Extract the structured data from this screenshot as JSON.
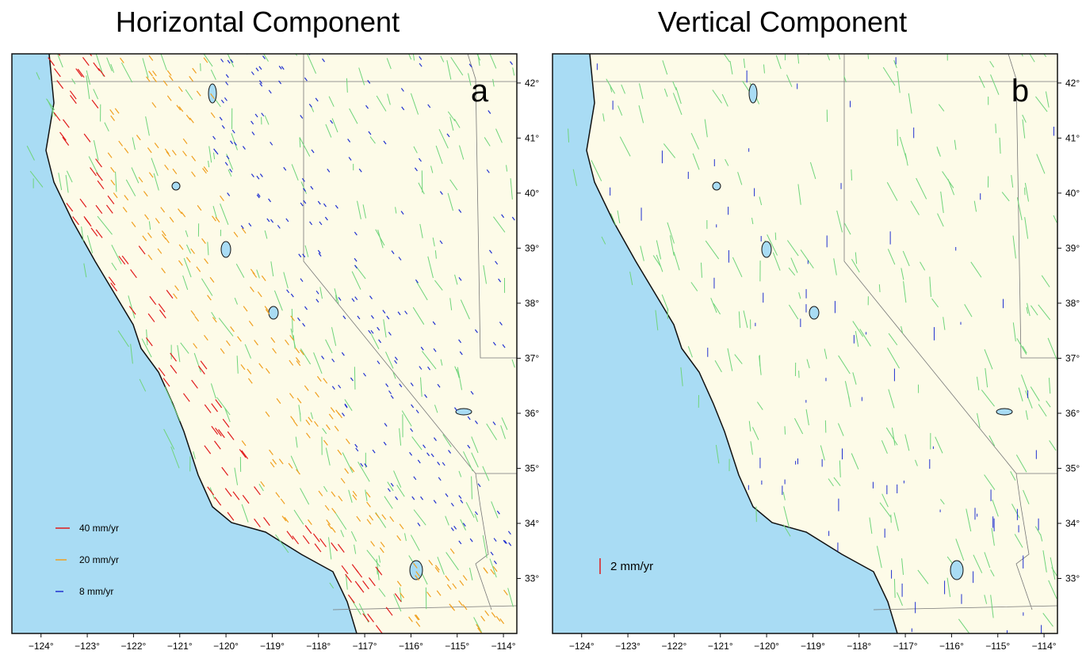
{
  "panels": [
    {
      "title": "Horizontal Component",
      "label": "a",
      "legend": [
        "40 mm/yr",
        "20 mm/yr",
        "8 mm/yr"
      ]
    },
    {
      "title": "Vertical Component",
      "label": "b",
      "legend": [
        "2 mm/yr"
      ]
    }
  ],
  "lon_lim": [
    -124.63,
    -113.71
  ],
  "lat_lim": [
    32.0,
    42.53
  ],
  "lon_ticks": [
    {
      "value": -124,
      "label": "−124°"
    },
    {
      "value": -123,
      "label": "−123°"
    },
    {
      "value": -122,
      "label": "−122°"
    },
    {
      "value": -121,
      "label": "−121°"
    },
    {
      "value": -120,
      "label": "−120°"
    },
    {
      "value": -119,
      "label": "−119°"
    },
    {
      "value": -118,
      "label": "−118°"
    },
    {
      "value": -117,
      "label": "−117°"
    },
    {
      "value": -116,
      "label": "−116°"
    },
    {
      "value": -115,
      "label": "−115°"
    },
    {
      "value": -114,
      "label": "−114°"
    }
  ],
  "lat_ticks": [
    {
      "value": 33,
      "label": "33°"
    },
    {
      "value": 34,
      "label": "34°"
    },
    {
      "value": 35,
      "label": "35°"
    },
    {
      "value": 36,
      "label": "36°"
    },
    {
      "value": 37,
      "label": "37°"
    },
    {
      "value": 38,
      "label": "38°"
    },
    {
      "value": 39,
      "label": "39°"
    },
    {
      "value": 40,
      "label": "40°"
    },
    {
      "value": 41,
      "label": "41°"
    },
    {
      "value": 42,
      "label": "42°"
    }
  ]
}
